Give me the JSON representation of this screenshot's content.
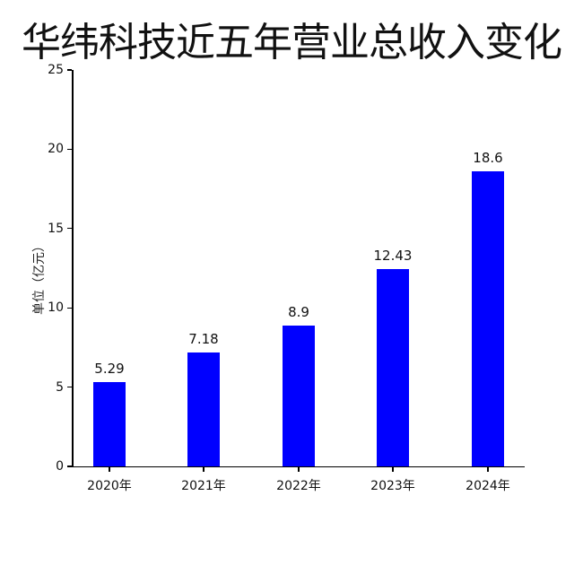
{
  "chart_data": {
    "type": "bar",
    "title": "华纬科技近五年营业总收入变化",
    "xlabel": "",
    "ylabel": "单位（亿元）",
    "categories": [
      "2020年",
      "2021年",
      "2022年",
      "2023年",
      "2024年"
    ],
    "values": [
      5.29,
      7.18,
      8.9,
      12.43,
      18.6
    ],
    "value_labels": [
      "5.29",
      "7.18",
      "8.9",
      "12.43",
      "18.6"
    ],
    "ylim": [
      0,
      25
    ],
    "yticks": [
      "0",
      "5",
      "10",
      "15",
      "20",
      "25"
    ],
    "grid": false,
    "legend": null,
    "bar_color": "#0000ff"
  }
}
